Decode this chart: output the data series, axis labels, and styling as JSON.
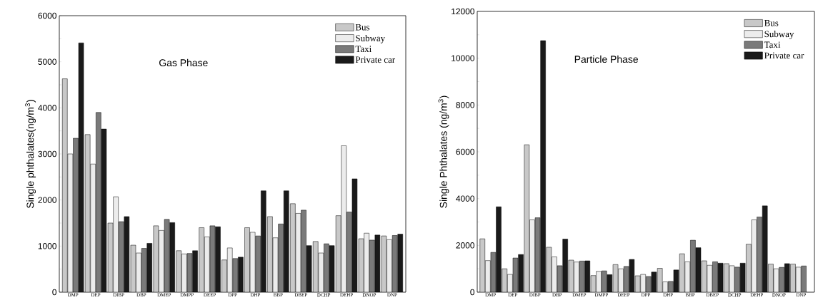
{
  "chart_data": [
    {
      "type": "bar",
      "ylabel": "Single phthalates(ng/m$^{3}$)",
      "annotations": [
        "Gas Phase"
      ],
      "legend": "top right",
      "categories": [
        "DMP",
        "DEP",
        "DIBP",
        "DBP",
        "DMEP",
        "DMPP",
        "DEEP",
        "DPP",
        "DHP",
        "BBP",
        "DBEP",
        "DCHP",
        "DEHP",
        "DNOP",
        "DNP"
      ],
      "ylim": [
        0,
        6000
      ],
      "yticks": [
        0,
        {
          "value": 500,
          "label": null
        },
        1000,
        {
          "value": 1500,
          "label": null
        },
        2000,
        {
          "value": 2500,
          "label": null
        },
        3000,
        {
          "value": 3500,
          "label": null
        },
        4000,
        {
          "value": 4500,
          "label": null
        },
        5000,
        {
          "value": 5500,
          "label": null
        },
        6000
      ],
      "series": [
        {
          "name": "Bus",
          "color": "#c8c8c8",
          "values": [
            4630,
            3420,
            1500,
            1020,
            1440,
            900,
            1400,
            700,
            1400,
            1640,
            1920,
            1100,
            1660,
            1160,
            1220
          ]
        },
        {
          "name": "Subway",
          "color": "#ececec",
          "values": [
            3000,
            2780,
            2070,
            850,
            1340,
            830,
            1200,
            960,
            1300,
            1180,
            1710,
            850,
            3180,
            1280,
            1140
          ]
        },
        {
          "name": "Taxi",
          "color": "#7a7a7a",
          "values": [
            3340,
            3900,
            1530,
            950,
            1580,
            840,
            1440,
            730,
            1220,
            1480,
            1780,
            1050,
            1740,
            1130,
            1230
          ]
        },
        {
          "name": "Private car",
          "color": "#1a1a1a",
          "values": [
            5410,
            3540,
            1640,
            1060,
            1510,
            900,
            1420,
            760,
            2200,
            2200,
            1010,
            1010,
            2460,
            1240,
            1260
          ]
        }
      ]
    },
    {
      "type": "bar",
      "ylabel": "Single Phthalates (ng/m$^{3}$)",
      "annotations": [
        "Particle Phase"
      ],
      "legend": "top right",
      "categories": [
        "DMP",
        "DEP",
        "DIBP",
        "DBP",
        "DMEP",
        "DMPP",
        "DEEP",
        "DPP",
        "DHP",
        "BBP",
        "DBEP",
        "DCHP",
        "DEHP",
        "DNOP",
        "DNP"
      ],
      "ylim": [
        0,
        12000
      ],
      "yticks": [
        0,
        {
          "value": 1000,
          "label": null
        },
        2000,
        {
          "value": 3000,
          "label": null
        },
        4000,
        {
          "value": 5000,
          "label": null
        },
        6000,
        {
          "value": 7000,
          "label": null
        },
        8000,
        {
          "value": 9000,
          "label": null
        },
        10000,
        {
          "value": 11000,
          "label": null
        },
        12000
      ],
      "series": [
        {
          "name": "Bus",
          "color": "#c8c8c8",
          "values": [
            2280,
            1000,
            6300,
            1920,
            1370,
            710,
            1180,
            700,
            1020,
            1640,
            1340,
            1220,
            2050,
            1200,
            1200
          ]
        },
        {
          "name": "Subway",
          "color": "#ececec",
          "values": [
            1350,
            760,
            3090,
            1510,
            1290,
            890,
            1000,
            760,
            440,
            1300,
            1150,
            1130,
            3090,
            1000,
            1070
          ]
        },
        {
          "name": "Taxi",
          "color": "#7a7a7a",
          "values": [
            1700,
            1460,
            3180,
            1130,
            1330,
            910,
            1100,
            670,
            460,
            2220,
            1300,
            1070,
            3220,
            1060,
            1120
          ]
        },
        {
          "name": "Private car",
          "color": "#1a1a1a",
          "values": [
            3650,
            1610,
            10750,
            2270,
            1340,
            750,
            1400,
            860,
            950,
            1900,
            1240,
            1240,
            3690,
            1220,
            null
          ]
        }
      ]
    }
  ]
}
